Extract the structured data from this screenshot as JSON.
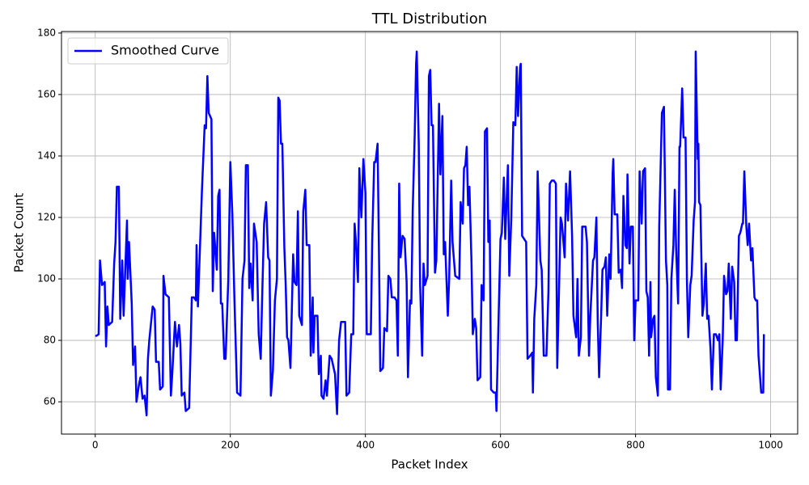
{
  "chart_data": {
    "type": "line",
    "title": "TTL Distribution",
    "x_label": "Packet Index",
    "y_label": "Packet Count",
    "x": [
      0,
      2,
      5,
      7,
      10,
      14,
      16,
      18,
      20,
      25,
      28,
      30,
      32,
      35,
      37,
      40,
      42,
      47,
      48,
      50,
      54,
      56,
      59,
      61,
      65,
      67,
      70,
      73,
      76,
      78,
      80,
      85,
      88,
      90,
      94,
      96,
      100,
      101,
      104,
      109,
      112,
      114,
      118,
      121,
      124,
      126,
      128,
      132,
      134,
      139,
      143,
      146,
      149,
      150,
      152,
      155,
      158,
      162,
      164,
      166,
      168,
      172,
      174,
      176,
      180,
      182,
      184,
      186,
      188,
      191,
      193,
      197,
      200,
      203,
      206,
      210,
      215,
      218,
      221,
      223,
      226,
      228,
      230,
      233,
      235,
      239,
      242,
      245,
      247,
      250,
      253,
      256,
      258,
      260,
      263,
      266,
      269,
      271,
      273,
      275,
      277,
      280,
      282,
      284,
      286,
      289,
      293,
      295,
      298,
      300,
      302,
      306,
      308,
      311,
      313,
      317,
      319,
      322,
      323,
      325,
      329,
      331,
      334,
      335,
      338,
      341,
      343,
      347,
      350,
      355,
      358,
      361,
      364,
      370,
      372,
      376,
      379,
      382,
      384,
      386,
      389,
      391,
      394,
      397,
      400,
      402,
      408,
      410,
      413,
      415,
      418,
      420,
      422,
      426,
      428,
      432,
      434,
      437,
      439,
      443,
      446,
      448,
      450,
      452,
      455,
      458,
      461,
      463,
      466,
      468,
      470,
      473,
      475,
      476,
      479,
      481,
      484,
      486,
      488,
      492,
      494,
      496,
      498,
      500,
      503,
      505,
      509,
      511,
      514,
      516,
      518,
      522,
      524,
      527,
      529,
      533,
      539,
      541,
      544,
      546,
      548,
      550,
      552,
      554,
      557,
      559,
      562,
      564,
      566,
      570,
      572,
      575,
      577,
      580,
      582,
      584,
      586,
      590,
      593,
      594,
      598,
      600,
      602,
      605,
      607,
      611,
      613,
      616,
      619,
      622,
      624,
      626,
      629,
      630,
      632,
      638,
      640,
      644,
      647,
      648,
      650,
      653,
      655,
      659,
      661,
      664,
      668,
      671,
      673,
      676,
      679,
      682,
      684,
      686,
      689,
      691,
      695,
      697,
      700,
      703,
      706,
      708,
      712,
      714,
      716,
      719,
      721,
      726,
      728,
      731,
      733,
      737,
      739,
      742,
      744,
      746,
      749,
      751,
      754,
      756,
      758,
      761,
      763,
      766,
      767,
      769,
      773,
      775,
      778,
      780,
      782,
      785,
      787,
      788,
      791,
      793,
      796,
      798,
      800,
      804,
      806,
      809,
      811,
      814,
      816,
      818,
      820,
      822,
      823,
      826,
      828,
      830,
      833,
      835,
      839,
      842,
      845,
      847,
      848,
      851,
      853,
      856,
      858,
      860,
      863,
      865,
      866,
      869,
      871,
      874,
      876,
      878,
      881,
      883,
      886,
      888,
      889,
      892,
      893,
      894,
      896,
      899,
      901,
      904,
      906,
      908,
      911,
      913,
      916,
      919,
      922,
      924,
      926,
      929,
      931,
      934,
      936,
      938,
      941,
      943,
      946,
      948,
      950,
      953,
      955,
      958,
      959,
      961,
      964,
      966,
      968,
      971,
      973,
      976,
      978,
      980,
      982,
      984,
      986,
      989,
      990
    ],
    "series": [
      {
        "name": "Smoothed Curve",
        "color": "#0000ff",
        "values": [
          81.5,
          81.5,
          82,
          106,
          98,
          99,
          78,
          91,
          85,
          86,
          105,
          112,
          130,
          130,
          87,
          106,
          88,
          119,
          100,
          112,
          92,
          72,
          78,
          60,
          66,
          68,
          61,
          62,
          55.6,
          74,
          80,
          91,
          90,
          73,
          73,
          64,
          65,
          101,
          95,
          94,
          62,
          69,
          86,
          78,
          85,
          79,
          62,
          63,
          57,
          58,
          94,
          94,
          93,
          111,
          91,
          110,
          129,
          150,
          149,
          166,
          154,
          152,
          96,
          115,
          103,
          127,
          129,
          92,
          92,
          74,
          74,
          100,
          138,
          121,
          94,
          63,
          62,
          100,
          106,
          137,
          137,
          97,
          105,
          93,
          118,
          112,
          82,
          74,
          93,
          118,
          125,
          107,
          106,
          62,
          70,
          93,
          100,
          159,
          158,
          144,
          144,
          110,
          98,
          81,
          80,
          71,
          108,
          99,
          98,
          122,
          88,
          85,
          122,
          129,
          111,
          111,
          75,
          94,
          76,
          88,
          88,
          69,
          75,
          62,
          61,
          67,
          62,
          75,
          74,
          69,
          56,
          80,
          86,
          86,
          62,
          63,
          82,
          82,
          118,
          112,
          99,
          136,
          120,
          139,
          128,
          82,
          82,
          112,
          138,
          138,
          144,
          110,
          70,
          71,
          84,
          83,
          101,
          100,
          94,
          94,
          93,
          75,
          131,
          107,
          114,
          113,
          99,
          68,
          93,
          92,
          122,
          147,
          170,
          174,
          144,
          98,
          75,
          105,
          98,
          101,
          166,
          168,
          150,
          150,
          102,
          106,
          157,
          134,
          153,
          108,
          112,
          88,
          100,
          132,
          112,
          101,
          100,
          125,
          118,
          136,
          137,
          143,
          124,
          130,
          106,
          82,
          87,
          84,
          67,
          68,
          98,
          93,
          148,
          149,
          112,
          119,
          64,
          63,
          63,
          57,
          95,
          113,
          115,
          133,
          113,
          137,
          101,
          120,
          151,
          150,
          169,
          153,
          169,
          170,
          114,
          112,
          74,
          75,
          76,
          63,
          87,
          98,
          135,
          106,
          103,
          75,
          75,
          96,
          131,
          132,
          132,
          131,
          71,
          90,
          120,
          118,
          107,
          131,
          119,
          135,
          114,
          88,
          81,
          100,
          75,
          81,
          117,
          117,
          112,
          75,
          88,
          106,
          107,
          120,
          86,
          68,
          88,
          103,
          104,
          107,
          88,
          108,
          100,
          134,
          139,
          121,
          121,
          102,
          103,
          97,
          127,
          111,
          110,
          134,
          105,
          117,
          117,
          80,
          93,
          93,
          135,
          118,
          135,
          136,
          96,
          94,
          75,
          99,
          81,
          87,
          88,
          68,
          62,
          117,
          154,
          156,
          106,
          98,
          64,
          64,
          100,
          111,
          129,
          110,
          92,
          143,
          143,
          162,
          146,
          146,
          100,
          81,
          98,
          101,
          119,
          125,
          174,
          139,
          144,
          125,
          124,
          88,
          92,
          105,
          87,
          88,
          77,
          64,
          82,
          82,
          80,
          82,
          64,
          80,
          101,
          95,
          96,
          105,
          87,
          104,
          99,
          80,
          80,
          114,
          115,
          118,
          118,
          135,
          117,
          111,
          118,
          106,
          110,
          94,
          93,
          93,
          75,
          69,
          63,
          63,
          82
        ]
      }
    ],
    "xlim": [
      -50,
      1040
    ],
    "ylim": [
      49.5,
      180.5
    ],
    "xticks": [
      0,
      200,
      400,
      600,
      800,
      1000
    ],
    "yticks": [
      60,
      80,
      100,
      120,
      140,
      160,
      180
    ],
    "grid": true,
    "legend": "upper-left"
  }
}
